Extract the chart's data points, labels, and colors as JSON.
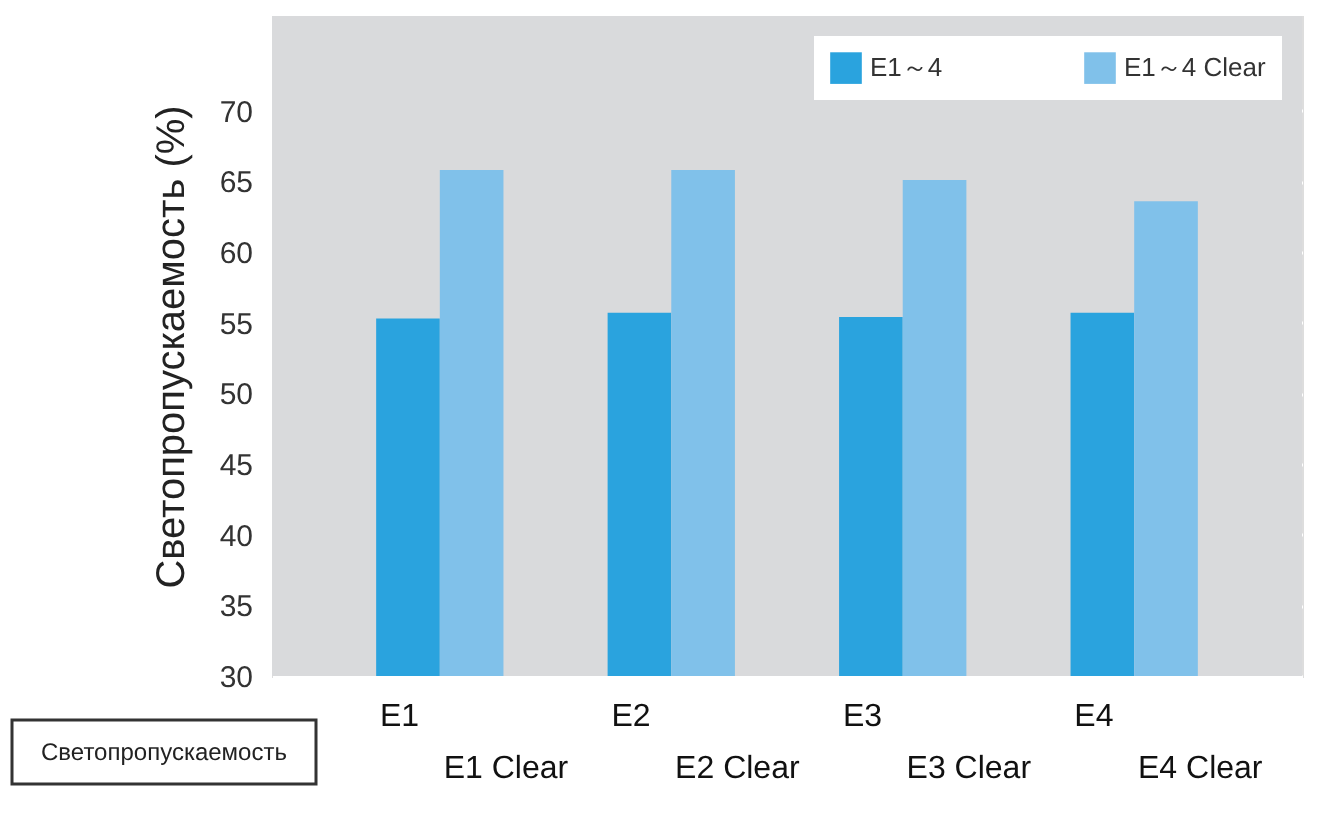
{
  "chart_data": {
    "type": "bar",
    "ylabel": "Светопропускаемость (%)",
    "categories": [
      "E1",
      "E1 Clear",
      "E2",
      "E2 Clear",
      "E3",
      "E3 Clear",
      "E4",
      "E4 Clear"
    ],
    "series": [
      {
        "name": "E1～4",
        "color": "#2aa3de",
        "values": [
          55.3,
          null,
          55.7,
          null,
          55.4,
          null,
          55.7,
          null
        ]
      },
      {
        "name": "E1～4 Clear",
        "color": "#80c1ea",
        "values": [
          null,
          65.8,
          null,
          65.8,
          null,
          65.1,
          null,
          63.6
        ]
      }
    ],
    "ylim": [
      30,
      76.7
    ],
    "yticks": [
      30,
      35,
      40,
      45,
      50,
      55,
      60,
      65,
      70
    ],
    "grid": "y",
    "legend": "top right",
    "annotations": [
      "Светопропускаемость"
    ]
  }
}
